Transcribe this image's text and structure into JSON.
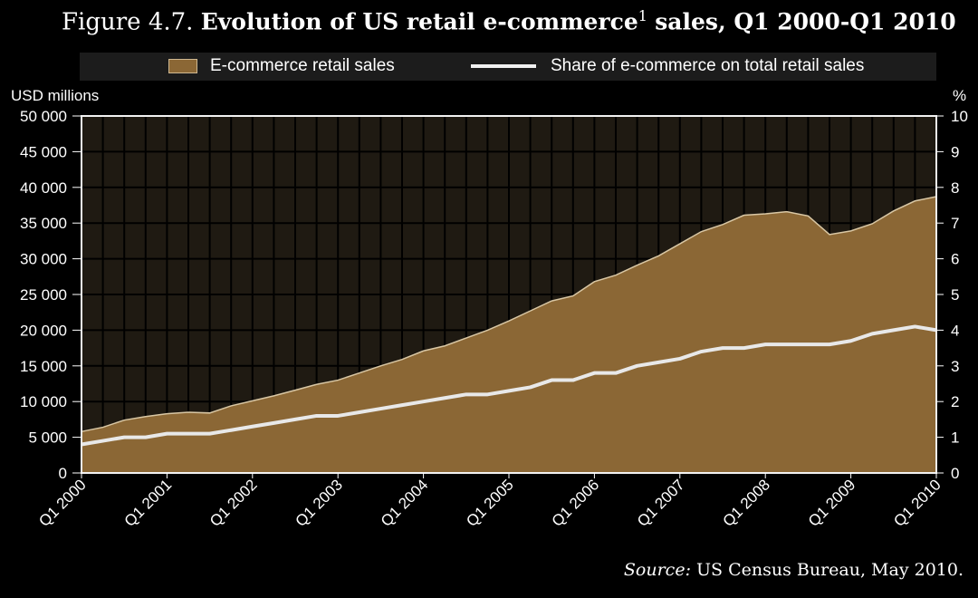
{
  "title": {
    "prefix": "Figure 4.7.",
    "main": "Evolution of US retail e-commerce",
    "footnote": "1",
    "suffix": "sales, Q1 2000-Q1 2010"
  },
  "legend": {
    "area_label": "E-commerce retail sales",
    "line_label": "Share of e-commerce on total retail sales"
  },
  "source": {
    "label": "Source:",
    "text": "US Census Bureau, May 2010."
  },
  "colors": {
    "background": "#000000",
    "plot_background": "#1f1a12",
    "area_fill": "#8b6735",
    "area_edge": "#d9c7a4",
    "line": "#e8e8e8",
    "grid": "#000000"
  },
  "chart_data": {
    "type": "area",
    "x": [
      "Q1 2000",
      "Q2 2000",
      "Q3 2000",
      "Q4 2000",
      "Q1 2001",
      "Q2 2001",
      "Q3 2001",
      "Q4 2001",
      "Q1 2002",
      "Q2 2002",
      "Q3 2002",
      "Q4 2002",
      "Q1 2003",
      "Q2 2003",
      "Q3 2003",
      "Q4 2003",
      "Q1 2004",
      "Q2 2004",
      "Q3 2004",
      "Q4 2004",
      "Q1 2005",
      "Q2 2005",
      "Q3 2005",
      "Q4 2005",
      "Q1 2006",
      "Q2 2006",
      "Q3 2006",
      "Q4 2006",
      "Q1 2007",
      "Q2 2007",
      "Q3 2007",
      "Q4 2007",
      "Q1 2008",
      "Q2 2008",
      "Q3 2008",
      "Q4 2008",
      "Q1 2009",
      "Q2 2009",
      "Q3 2009",
      "Q4 2009",
      "Q1 2010"
    ],
    "tick_labels": [
      "Q1 2000",
      "Q1 2001",
      "Q1 2002",
      "Q1 2003",
      "Q1 2004",
      "Q1 2005",
      "Q1 2006",
      "Q1 2007",
      "Q1 2008",
      "Q1 2009",
      "Q1 2010"
    ],
    "series": [
      {
        "name": "E-commerce retail sales",
        "type": "area",
        "axis": "left",
        "values": [
          5800,
          6400,
          7400,
          7900,
          8300,
          8500,
          8400,
          9400,
          10100,
          10800,
          11600,
          12400,
          13000,
          14000,
          15000,
          15900,
          17100,
          17800,
          18900,
          20000,
          21300,
          22700,
          24100,
          24800,
          26800,
          27700,
          29100,
          30400,
          32100,
          33800,
          34800,
          36100,
          36300,
          36600,
          36000,
          33400,
          33900,
          34900,
          36700,
          38100,
          38700
        ]
      },
      {
        "name": "Share of e-commerce on total retail sales",
        "type": "line",
        "axis": "right",
        "values": [
          0.8,
          0.9,
          1.0,
          1.0,
          1.1,
          1.1,
          1.1,
          1.2,
          1.3,
          1.4,
          1.5,
          1.6,
          1.6,
          1.7,
          1.8,
          1.9,
          2.0,
          2.1,
          2.2,
          2.2,
          2.3,
          2.4,
          2.6,
          2.6,
          2.8,
          2.8,
          3.0,
          3.1,
          3.2,
          3.4,
          3.5,
          3.5,
          3.6,
          3.6,
          3.6,
          3.6,
          3.7,
          3.9,
          4.0,
          4.1,
          4.0
        ]
      }
    ],
    "ylabel_left": "USD millions",
    "ylabel_right": "%",
    "ylim_left": [
      0,
      50000
    ],
    "ylim_right": [
      0,
      10
    ],
    "yticks_left": [
      "0",
      "5 000",
      "10 000",
      "15 000",
      "20 000",
      "25 000",
      "30 000",
      "35 000",
      "40 000",
      "45 000",
      "50 000"
    ],
    "yticks_right": [
      "0",
      "1",
      "2",
      "3",
      "4",
      "5",
      "6",
      "7",
      "8",
      "9",
      "10"
    ],
    "grid": true,
    "legend_position": "top"
  }
}
